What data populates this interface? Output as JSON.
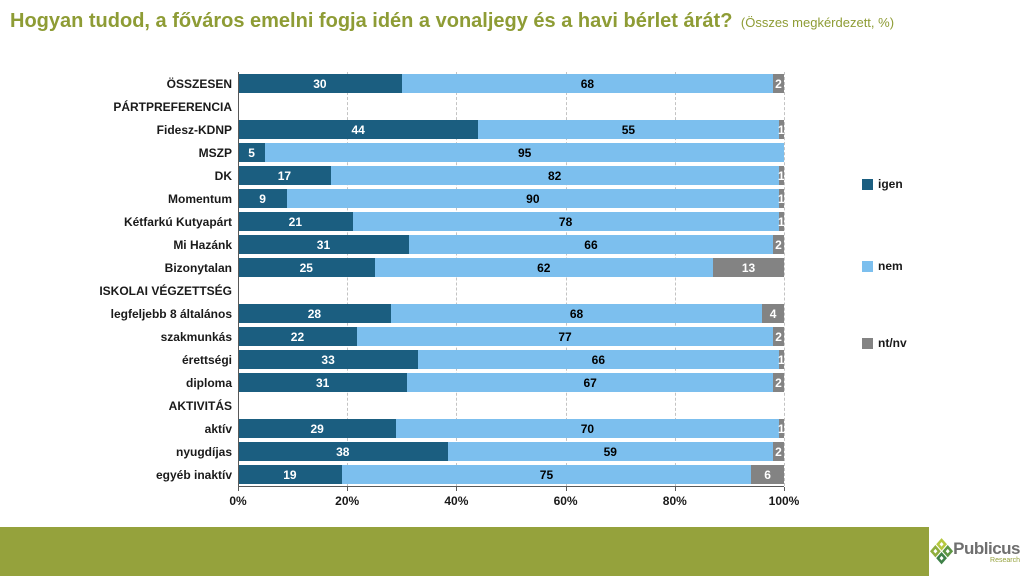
{
  "title": {
    "main": "Hogyan tudod, a főváros emelni fogja idén a vonaljegy és a havi bérlet árát?",
    "suffix": "(Összes megkérdezett, %)"
  },
  "colors": {
    "igen": "#1b5e80",
    "nem": "#7cbfee",
    "ntnv": "#838383",
    "title_green": "#8e9c35",
    "footer_band": "#95a23c"
  },
  "legend": [
    {
      "label": "igen",
      "color": "#1b5e80"
    },
    {
      "label": "nem",
      "color": "#7cbfee"
    },
    {
      "label": "nt/nv",
      "color": "#838383"
    }
  ],
  "chart_data": {
    "type": "bar",
    "stacked": true,
    "orientation": "horizontal",
    "series_names": [
      "igen",
      "nem",
      "nt/nv"
    ],
    "x_axis": {
      "range": [
        0,
        100
      ],
      "ticks": [
        "0%",
        "20%",
        "40%",
        "60%",
        "80%",
        "100%"
      ]
    },
    "rows": [
      {
        "label": "ÖSSZESEN",
        "header": false,
        "igen": 30,
        "nem": 68,
        "ntnv": 2
      },
      {
        "label": "PÁRTPREFERENCIA",
        "header": true
      },
      {
        "label": "Fidesz-KDNP",
        "header": false,
        "igen": 44,
        "nem": 55,
        "ntnv": 1
      },
      {
        "label": "MSZP",
        "header": false,
        "igen": 5,
        "nem": 95,
        "ntnv": null
      },
      {
        "label": "DK",
        "header": false,
        "igen": 17,
        "nem": 82,
        "ntnv": 1
      },
      {
        "label": "Momentum",
        "header": false,
        "igen": 9,
        "nem": 90,
        "ntnv": 1
      },
      {
        "label": "Kétfarkú Kutyapárt",
        "header": false,
        "igen": 21,
        "nem": 78,
        "ntnv": 1
      },
      {
        "label": "Mi Hazánk",
        "header": false,
        "igen": 31,
        "nem": 66,
        "ntnv": 2
      },
      {
        "label": "Bizonytalan",
        "header": false,
        "igen": 25,
        "nem": 62,
        "ntnv": 13
      },
      {
        "label": "ISKOLAI VÉGZETTSÉG",
        "header": true
      },
      {
        "label": "legfeljebb 8 általános",
        "header": false,
        "igen": 28,
        "nem": 68,
        "ntnv": 4
      },
      {
        "label": "szakmunkás",
        "header": false,
        "igen": 22,
        "nem": 77,
        "ntnv": 2
      },
      {
        "label": "érettségi",
        "header": false,
        "igen": 33,
        "nem": 66,
        "ntnv": 1
      },
      {
        "label": "diploma",
        "header": false,
        "igen": 31,
        "nem": 67,
        "ntnv": 2
      },
      {
        "label": "AKTIVITÁS",
        "header": true
      },
      {
        "label": "aktív",
        "header": false,
        "igen": 29,
        "nem": 70,
        "ntnv": 1
      },
      {
        "label": "nyugdíjas",
        "header": false,
        "igen": 38,
        "nem": 59,
        "ntnv": 2
      },
      {
        "label": "egyéb inaktív",
        "header": false,
        "igen": 19,
        "nem": 75,
        "ntnv": 6
      }
    ]
  },
  "footer": {
    "brand": "Publicus",
    "brand_sub": "Research"
  }
}
